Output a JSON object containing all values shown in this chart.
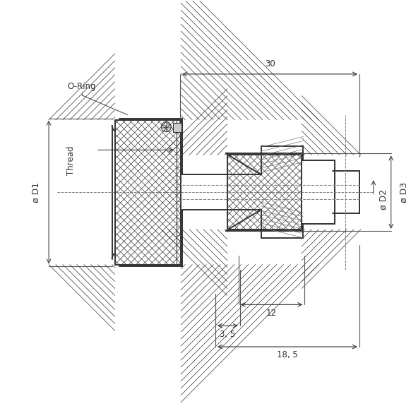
{
  "bg_color": "#ffffff",
  "line_color": "#333333",
  "hatch_color": "#555555",
  "dim_color": "#444444",
  "fig_width": 5.82,
  "fig_height": 5.82,
  "title": "",
  "annotations": {
    "dim_18_5": "18, 5",
    "dim_3_5": "3, 5",
    "dim_12": "12",
    "dim_30": "30",
    "label_D1": "ø D1",
    "label_D2": "ø D2",
    "label_D3": "ø D3",
    "label_Thread": "Thread",
    "label_ORing": "O-Ring"
  }
}
